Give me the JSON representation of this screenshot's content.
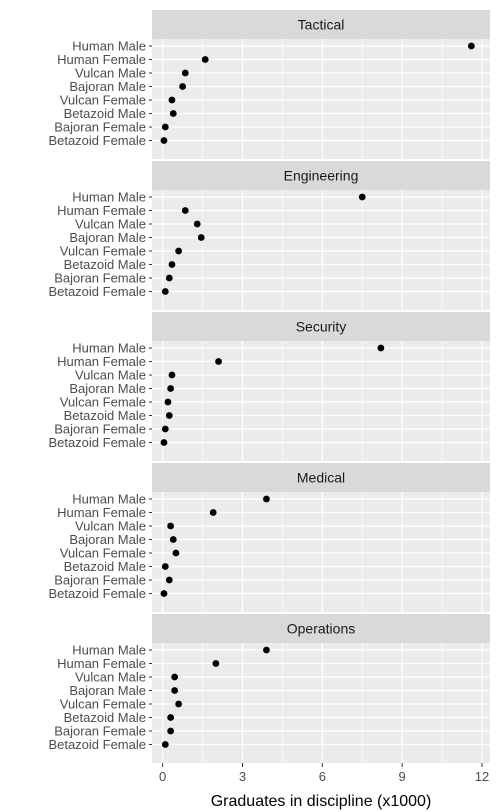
{
  "chart_data": {
    "type": "scatter",
    "layout": "faceted dot plot",
    "xlabel": "Graduates in discipline (x1000)",
    "xlim": [
      -0.4,
      12.3
    ],
    "x_ticks": [
      0,
      3,
      6,
      9,
      12
    ],
    "categories": [
      "Human Male",
      "Human Female",
      "Vulcan Male",
      "Bajoran Male",
      "Vulcan Female",
      "Betazoid Male",
      "Bajoran Female",
      "Betazoid Female"
    ],
    "colors": {
      "panel_background": "#ebebeb",
      "strip_background": "#d9d9d9",
      "grid": "#ffffff",
      "point": "#000000"
    },
    "facets": [
      {
        "name": "Tactical",
        "values": [
          11.6,
          1.6,
          0.85,
          0.75,
          0.35,
          0.4,
          0.1,
          0.05
        ]
      },
      {
        "name": "Engineering",
        "values": [
          7.5,
          0.85,
          1.3,
          1.45,
          0.6,
          0.35,
          0.25,
          0.1
        ]
      },
      {
        "name": "Security",
        "values": [
          8.2,
          2.1,
          0.35,
          0.3,
          0.2,
          0.25,
          0.1,
          0.05
        ]
      },
      {
        "name": "Medical",
        "values": [
          3.9,
          1.9,
          0.3,
          0.4,
          0.5,
          0.1,
          0.25,
          0.05
        ]
      },
      {
        "name": "Operations",
        "values": [
          3.9,
          2.0,
          0.45,
          0.45,
          0.6,
          0.3,
          0.3,
          0.1
        ]
      }
    ]
  }
}
